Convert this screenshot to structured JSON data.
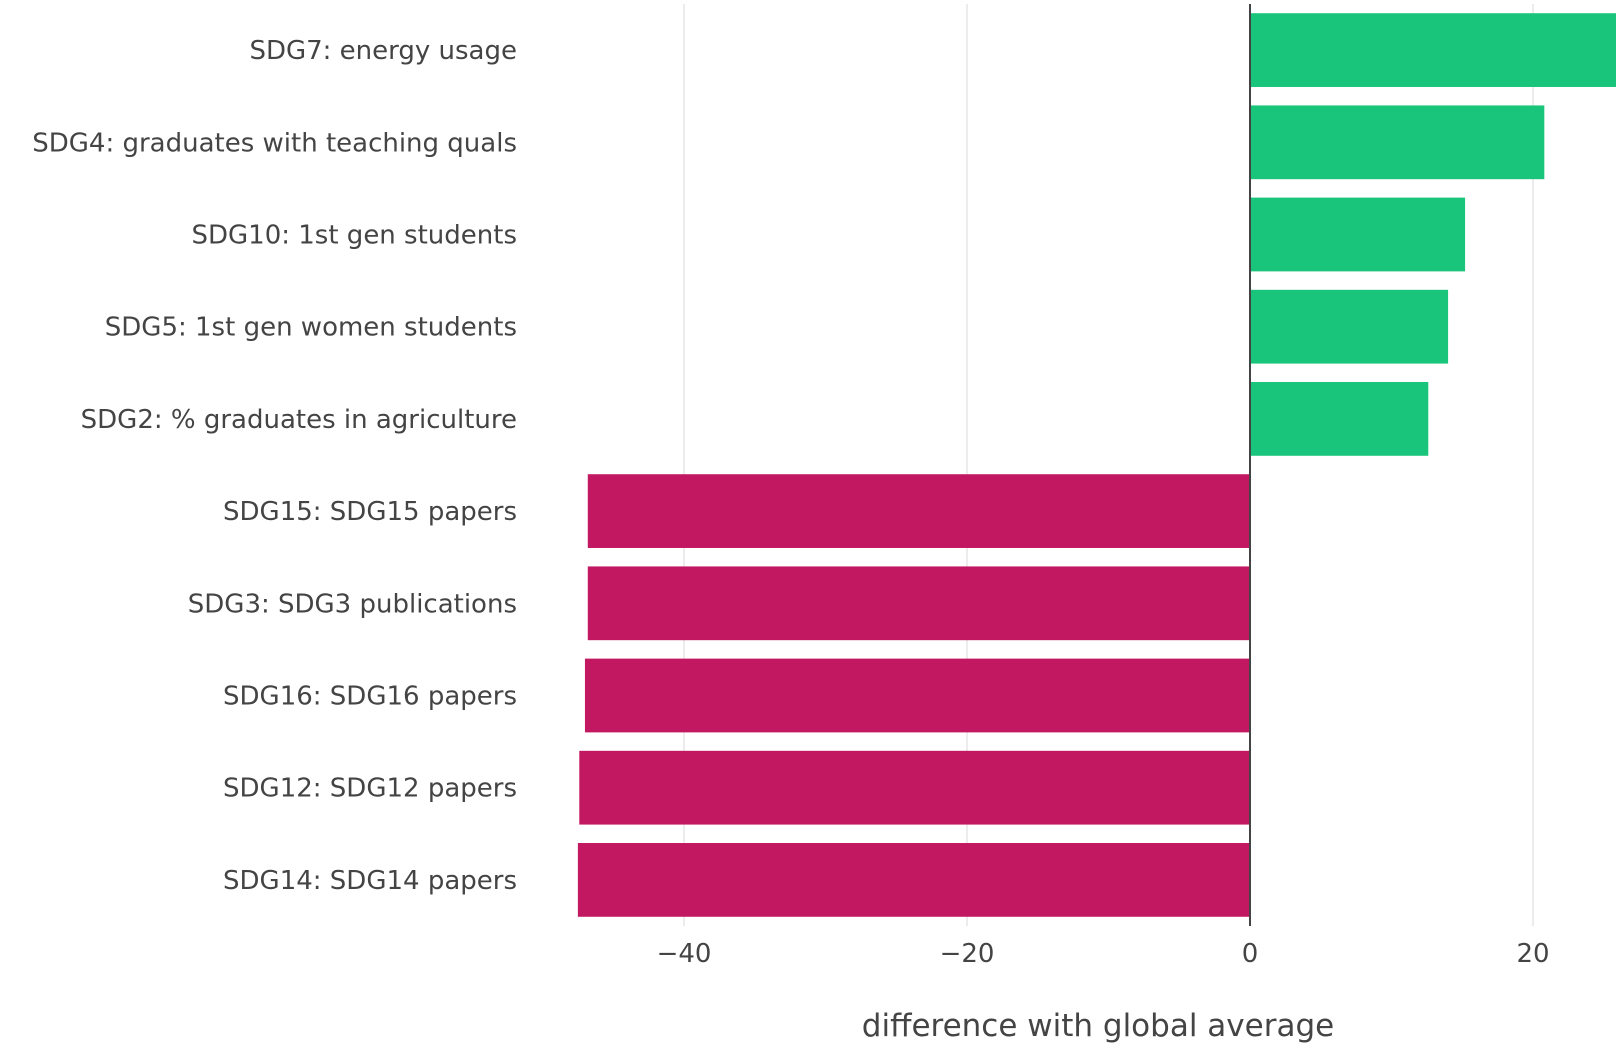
{
  "chart_data": {
    "type": "bar",
    "orientation": "horizontal",
    "categories": [
      "SDG7: energy usage",
      "SDG4: graduates with teaching quals",
      "SDG10: 1st gen students",
      "SDG5: 1st gen women students",
      "SDG2: % graduates in agriculture",
      "SDG15: SDG15 papers",
      "SDG3: SDG3 publications",
      "SDG16: SDG16 papers",
      "SDG12: SDG12 papers",
      "SDG14: SDG14 papers"
    ],
    "values": [
      27.5,
      20.8,
      15.2,
      14.0,
      12.6,
      -46.8,
      -46.8,
      -47.0,
      -47.4,
      -47.5
    ],
    "xlabel": "difference with global average",
    "ylabel": "",
    "title": "",
    "xlim": [
      -47.5,
      26.0
    ],
    "xticks": [
      -40,
      -20,
      0,
      20
    ],
    "xtick_labels": [
      "−40",
      "−20",
      "0",
      "20"
    ],
    "grid": "vertical",
    "colors": {
      "positive": "#19c57b",
      "negative": "#c21862"
    }
  }
}
